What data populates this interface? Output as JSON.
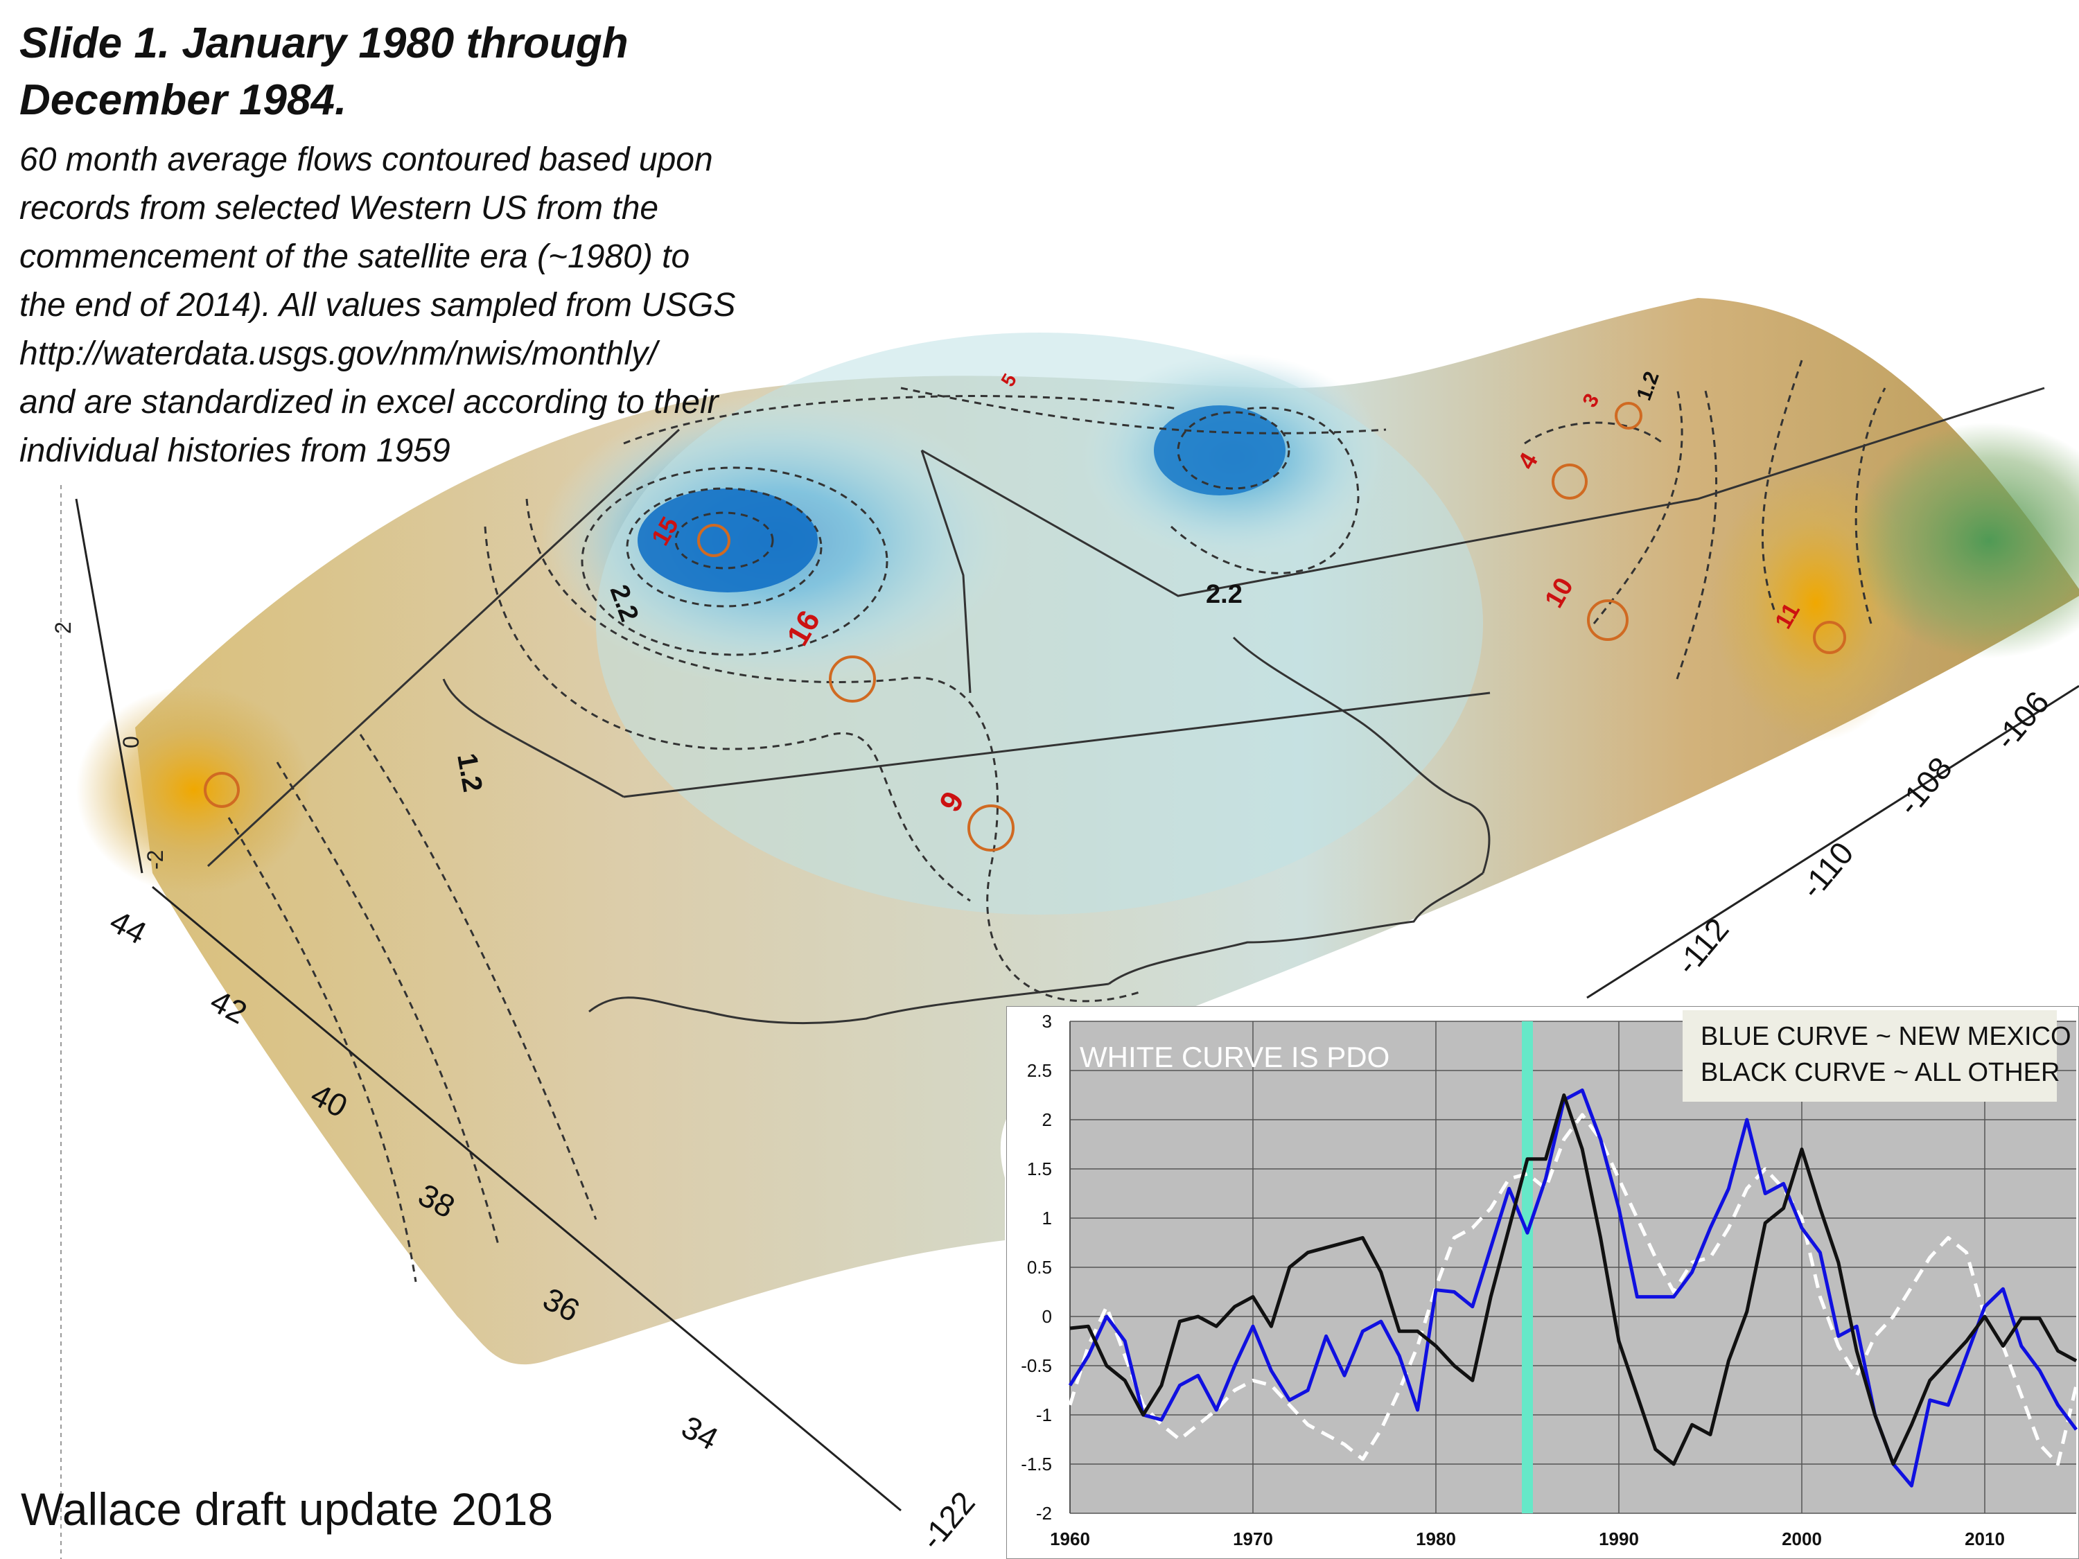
{
  "slide": {
    "title_line1": "Slide 1.  January 1980 through",
    "title_line2": "December 1984.",
    "description_lines": [
      "60 month average flows  contoured based upon",
      "records from selected Western US from the",
      "commencement of the satellite era (~1980) to",
      "the end of  2014). All values sampled from USGS",
      "http://waterdata.usgs.gov/nm/nwis/monthly/",
      "and are standardized in excel according to their",
      "individual histories from 1959"
    ],
    "footer": "Wallace draft update 2018"
  },
  "map": {
    "latitude_labels": [
      "44",
      "42",
      "40",
      "38",
      "36",
      "34"
    ],
    "longitude_labels": [
      "-122",
      "-112",
      "-110",
      "-108",
      "-106"
    ],
    "vertical_axis_labels": [
      "2",
      "0",
      "-2"
    ],
    "contour_labels": [
      "2.2",
      "2.2",
      "1.2",
      "1.2"
    ],
    "station_labels": [
      "15",
      "16",
      "9",
      "10",
      "4",
      "3",
      "5",
      "11"
    ],
    "colors": {
      "wet": "#1e86c8",
      "neutral": "#c9e4e8",
      "dry": "#c9a468",
      "very_dry": "#e0a010",
      "green": "#5f9e5a",
      "station_label": "#cc1111",
      "station_ring": "#d06a22"
    }
  },
  "chart_data": {
    "type": "line",
    "x": [
      1960,
      1961,
      1962,
      1963,
      1964,
      1965,
      1966,
      1967,
      1968,
      1969,
      1970,
      1971,
      1972,
      1973,
      1974,
      1975,
      1976,
      1977,
      1978,
      1979,
      1980,
      1981,
      1982,
      1983,
      1984,
      1985,
      1986,
      1987,
      1988,
      1989,
      1990,
      1991,
      1992,
      1993,
      1994,
      1995,
      1996,
      1997,
      1998,
      1999,
      2000,
      2001,
      2002,
      2003,
      2004,
      2005,
      2006,
      2007,
      2008,
      2009,
      2010,
      2011,
      2012,
      2013,
      2014,
      2015
    ],
    "series": [
      {
        "name": "BLUE CURVE ~ NEW MEXICO",
        "color": "#1010e0",
        "dash": "solid",
        "values": [
          -0.7,
          -0.4,
          0.0,
          -0.25,
          -1.0,
          -1.05,
          -0.7,
          -0.6,
          -0.95,
          -0.5,
          -0.1,
          -0.55,
          -0.85,
          -0.75,
          -0.2,
          -0.6,
          -0.15,
          -0.05,
          -0.4,
          -0.95,
          0.27,
          0.25,
          0.1,
          0.7,
          1.3,
          0.85,
          1.4,
          2.2,
          2.3,
          1.8,
          1.1,
          0.2,
          0.2,
          0.2,
          0.45,
          0.9,
          1.3,
          2.0,
          1.25,
          1.35,
          0.9,
          0.65,
          -0.2,
          -0.1,
          -1.0,
          -1.5,
          -1.72,
          -0.85,
          -0.9,
          -0.4,
          0.1,
          0.28,
          -0.3,
          -0.55,
          -0.9,
          -1.15
        ]
      },
      {
        "name": "BLACK CURVE ~ ALL OTHER",
        "color": "#111111",
        "dash": "solid",
        "values": [
          -0.12,
          -0.1,
          -0.5,
          -0.65,
          -1.0,
          -0.7,
          -0.05,
          0.0,
          -0.1,
          0.1,
          0.2,
          -0.1,
          0.5,
          0.65,
          0.7,
          0.75,
          0.8,
          0.45,
          -0.15,
          -0.15,
          -0.3,
          -0.5,
          -0.65,
          0.2,
          0.9,
          1.6,
          1.6,
          2.25,
          1.7,
          0.8,
          -0.25,
          -0.8,
          -1.35,
          -1.5,
          -1.1,
          -1.2,
          -0.45,
          0.05,
          0.95,
          1.1,
          1.7,
          1.1,
          0.55,
          -0.35,
          -1.0,
          -1.5,
          -1.1,
          -0.65,
          -0.45,
          -0.25,
          0.0,
          -0.3,
          -0.02,
          -0.02,
          -0.35,
          -0.45
        ]
      },
      {
        "name": "WHITE CURVE IS PDO",
        "color": "#ffffff",
        "dash": "dashed",
        "values": [
          -0.9,
          -0.3,
          0.1,
          -0.4,
          -0.9,
          -1.1,
          -1.25,
          -1.1,
          -0.95,
          -0.75,
          -0.65,
          -0.7,
          -0.9,
          -1.1,
          -1.2,
          -1.3,
          -1.45,
          -1.15,
          -0.75,
          -0.3,
          0.3,
          0.8,
          0.9,
          1.1,
          1.4,
          1.45,
          1.3,
          1.8,
          2.05,
          1.8,
          1.4,
          1.0,
          0.6,
          0.25,
          0.55,
          0.6,
          0.9,
          1.3,
          1.5,
          1.3,
          1.0,
          0.2,
          -0.3,
          -0.6,
          -0.2,
          0.0,
          0.3,
          0.6,
          0.8,
          0.65,
          0.0,
          -0.3,
          -0.8,
          -1.3,
          -1.5,
          -0.7
        ]
      }
    ],
    "title": "",
    "xlabel": "",
    "ylabel": "",
    "xlim": [
      1960,
      2015
    ],
    "ylim": [
      -2,
      3
    ],
    "x_ticks": [
      1960,
      1970,
      1980,
      1990,
      2000,
      2010
    ],
    "y_ticks": [
      -2,
      -1.5,
      -1,
      -0.5,
      0,
      0.5,
      1,
      1.5,
      2,
      2.5,
      3
    ],
    "grid": true,
    "marker_year": 1985,
    "marker_color": "#66e8c8",
    "plot_background": "#bebebe",
    "legend_lines": [
      "BLUE CURVE ~ NEW MEXICO",
      "BLACK CURVE ~ ALL OTHER"
    ],
    "annotation": "WHITE CURVE IS PDO",
    "legend": "top-right"
  }
}
